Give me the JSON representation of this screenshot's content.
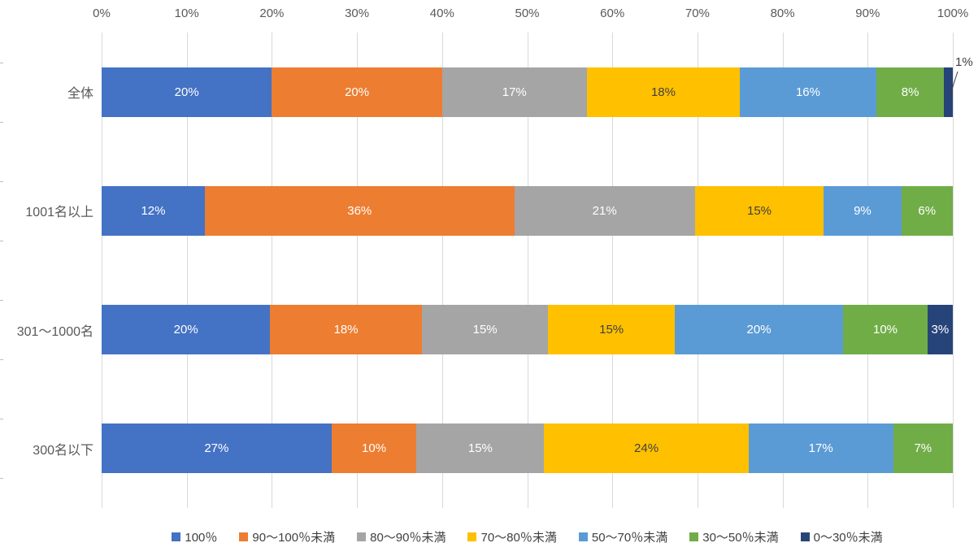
{
  "chart_data": {
    "type": "bar",
    "variant": "horizontal-stacked-100",
    "title": "",
    "xlabel": "",
    "ylabel": "",
    "axis_range": [
      0,
      100
    ],
    "grid": true,
    "legend_position": "bottom",
    "x_axis_position": "top",
    "x_ticks": [
      "0%",
      "10%",
      "20%",
      "30%",
      "40%",
      "50%",
      "60%",
      "70%",
      "80%",
      "90%",
      "100%"
    ],
    "categories": [
      "全体",
      "1001名以上",
      "301〜1000名",
      "300名以下"
    ],
    "series": [
      {
        "name": "100％",
        "color": "#4472C4",
        "values": [
          20,
          12,
          20,
          27
        ]
      },
      {
        "name": "90〜100％未満",
        "color": "#ED7D31",
        "values": [
          20,
          36,
          18,
          10
        ]
      },
      {
        "name": "80〜90％未満",
        "color": "#A5A5A5",
        "values": [
          17,
          21,
          15,
          15
        ]
      },
      {
        "name": "70〜80％未満",
        "color": "#FFC000",
        "values": [
          18,
          15,
          15,
          24
        ]
      },
      {
        "name": "50〜70％未満",
        "color": "#5B9BD5",
        "values": [
          16,
          9,
          20,
          17
        ]
      },
      {
        "name": "30〜50％未満",
        "color": "#70AD47",
        "values": [
          8,
          6,
          10,
          7
        ]
      },
      {
        "name": "0〜30％未満",
        "color": "#264478",
        "values": [
          1,
          0,
          3,
          0
        ]
      }
    ],
    "data_label_suffix": "%",
    "callout": {
      "text": "1%",
      "category_index": 0,
      "series_index": 6
    }
  },
  "style_data": {
    "gridline_color": "#D9D9D9",
    "axis_text_color": "#595959",
    "legend_text_color": "#404040",
    "label_color_default": "#FFFFFF",
    "label_color_on_yellow": "#404040",
    "yellow_series_index": 3
  }
}
